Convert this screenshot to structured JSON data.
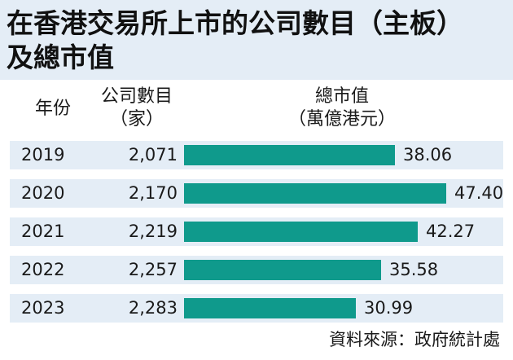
{
  "title_lines": [
    "在香港交易所上市的公司數目（主板）",
    "及總市值"
  ],
  "headers": {
    "year": "年份",
    "count_line1": "公司數目",
    "count_line2": "（家）",
    "cap_line1": "總市值",
    "cap_line2": "（萬億港元）"
  },
  "source": "資料來源：政府統計處",
  "colors": {
    "bar": "#0f9a8c",
    "band": "#e4edf6"
  },
  "chart_data": {
    "type": "bar",
    "orientation": "horizontal",
    "categories": [
      "2019",
      "2020",
      "2021",
      "2022",
      "2023"
    ],
    "company_counts": [
      "2,071",
      "2,170",
      "2,219",
      "2,257",
      "2,283"
    ],
    "values": [
      38.06,
      47.4,
      42.27,
      35.58,
      30.99
    ],
    "value_labels": [
      "38.06",
      "47.40",
      "42.27",
      "35.58",
      "30.99"
    ],
    "xlim": [
      0,
      47.4
    ]
  }
}
